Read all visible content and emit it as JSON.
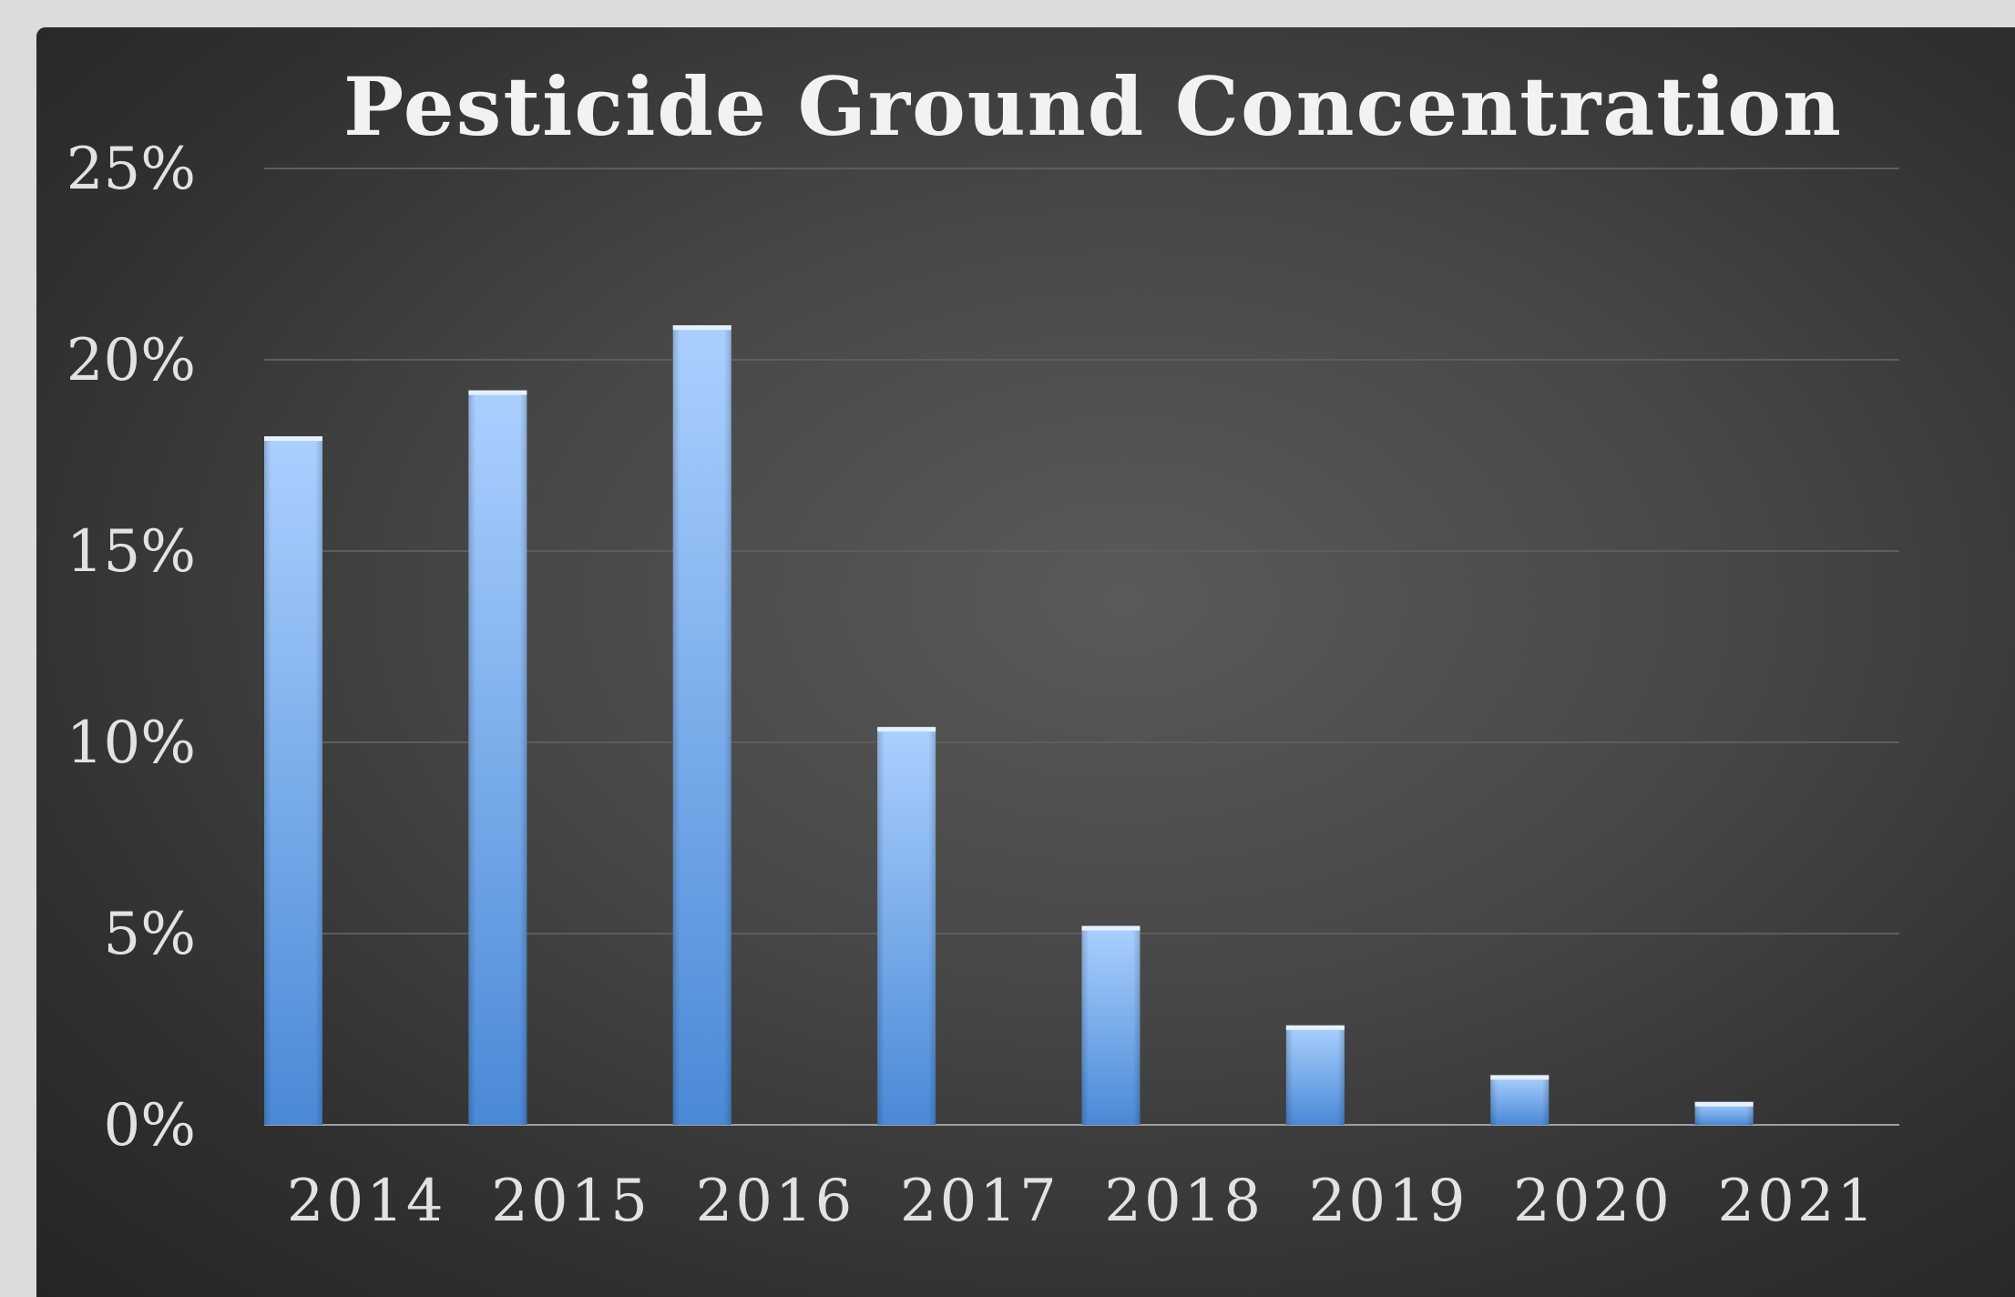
{
  "chart_data": {
    "type": "bar",
    "title": "Pesticide Ground Concentration",
    "xlabel": "",
    "ylabel": "",
    "categories": [
      "2014",
      "2015",
      "2016",
      "2017",
      "2018",
      "2019",
      "2020",
      "2021"
    ],
    "values": [
      18.0,
      19.2,
      20.9,
      10.4,
      5.2,
      2.6,
      1.3,
      0.6
    ],
    "value_unit": "%",
    "ylim": [
      0,
      25
    ],
    "yticks": [
      0,
      5,
      10,
      15,
      20,
      25
    ],
    "ytick_labels": [
      "0%",
      "5%",
      "10%",
      "15%",
      "20%",
      "25%"
    ],
    "grid": true,
    "legend": "none",
    "colors": {
      "bar_top": "#a9cdfc",
      "bar_bottom": "#4a8ad8",
      "background": "#3c3c3c",
      "text": "#e2e2e2"
    }
  }
}
